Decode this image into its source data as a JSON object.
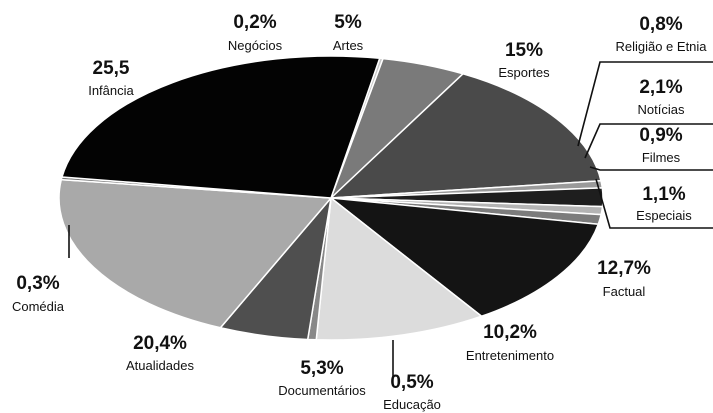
{
  "chart_data": {
    "type": "pie",
    "slices": [
      {
        "label": "Negócios",
        "value_label": "0,2%",
        "value": 0.2,
        "color": "#c8c8c8"
      },
      {
        "label": "Artes",
        "value_label": "5%",
        "value": 5.0,
        "color": "#7a7a7a"
      },
      {
        "label": "Esportes",
        "value_label": "15%",
        "value": 15.0,
        "color": "#4a4a4a"
      },
      {
        "label": "Religião e Etnia",
        "value_label": "0,8%",
        "value": 0.8,
        "color": "#9a9a9a"
      },
      {
        "label": "Notícias",
        "value_label": "2,1%",
        "value": 2.1,
        "color": "#1e1e1e"
      },
      {
        "label": "Filmes",
        "value_label": "0,9%",
        "value": 0.9,
        "color": "#b4b4b4"
      },
      {
        "label": "Especiais",
        "value_label": "1,1%",
        "value": 1.1,
        "color": "#7c7c7c"
      },
      {
        "label": "Factual",
        "value_label": "12,7%",
        "value": 12.7,
        "color": "#141414"
      },
      {
        "label": "Entretenimento",
        "value_label": "10,2%",
        "value": 10.2,
        "color": "#dcdcdc"
      },
      {
        "label": "Educação",
        "value_label": "0,5%",
        "value": 0.5,
        "color": "#888888"
      },
      {
        "label": "Documentários",
        "value_label": "5,3%",
        "value": 5.3,
        "color": "#4f4f4f"
      },
      {
        "label": "Atualidades",
        "value_label": "20,4%",
        "value": 20.4,
        "color": "#a9a9a9"
      },
      {
        "label": "Comédia",
        "value_label": "0,3%",
        "value": 0.3,
        "color": "#777777"
      },
      {
        "label": "Infância",
        "value_label": "25,5",
        "value": 25.5,
        "color": "#030303"
      }
    ]
  }
}
